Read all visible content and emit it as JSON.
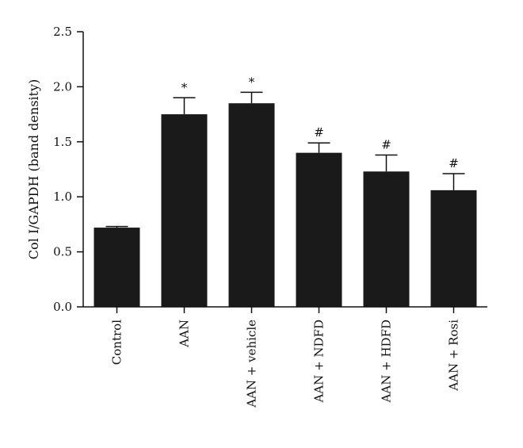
{
  "chart_data": {
    "type": "bar",
    "categories": [
      "Control",
      "AAN",
      "AAN + vehicle",
      "AAN + NDFD",
      "AAN + HDFD",
      "AAN + Rosi"
    ],
    "values": [
      0.72,
      1.75,
      1.85,
      1.4,
      1.23,
      1.06
    ],
    "errors": [
      0.01,
      0.15,
      0.1,
      0.09,
      0.15,
      0.15
    ],
    "annotations": [
      "",
      "*",
      "*",
      "#",
      "#",
      "#"
    ],
    "ylabel": "Col I/GAPDH (band density)",
    "ylim": [
      0,
      2.5
    ],
    "yticks": [
      "0.0",
      "0.5",
      "1.0",
      "1.5",
      "2.0",
      "2.5"
    ],
    "grid": false,
    "bar_color": "#1a1a1a"
  }
}
